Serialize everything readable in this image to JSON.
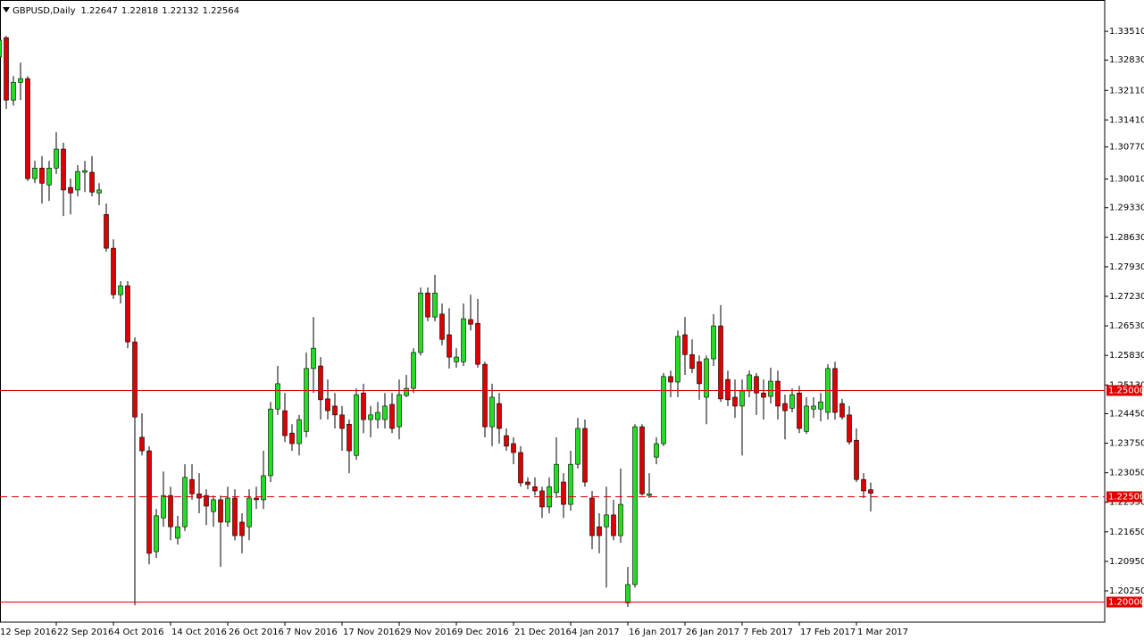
{
  "chart_data": {
    "type": "candlestick",
    "title": "GBPUSD,Daily",
    "categories": [
      "12 Sep 2016",
      null,
      null,
      null,
      null,
      null,
      null,
      null,
      "22 Sep 2016",
      null,
      null,
      null,
      null,
      null,
      null,
      null,
      "4 Oct 2016",
      null,
      null,
      null,
      null,
      null,
      null,
      null,
      "14 Oct 2016",
      null,
      null,
      null,
      null,
      null,
      null,
      null,
      "26 Oct 2016",
      null,
      null,
      null,
      null,
      null,
      null,
      null,
      "7 Nov 2016",
      null,
      null,
      null,
      null,
      null,
      null,
      null,
      "17 Nov 2016",
      null,
      null,
      null,
      null,
      null,
      null,
      null,
      "29 Nov 2016",
      null,
      null,
      null,
      null,
      null,
      null,
      null,
      "9 Dec 2016",
      null,
      null,
      null,
      null,
      null,
      null,
      null,
      "21 Dec 2016",
      null,
      null,
      null,
      null,
      null,
      null,
      null,
      "4 Jan 2017",
      null,
      null,
      null,
      null,
      null,
      null,
      null,
      "16 Jan 2017",
      null,
      null,
      null,
      null,
      null,
      null,
      null,
      "26 Jan 2017",
      null,
      null,
      null,
      null,
      null,
      null,
      null,
      "7 Feb 2017",
      null,
      null,
      null,
      null,
      null,
      null,
      null,
      "17 Feb 2017",
      null,
      null,
      null,
      null,
      null,
      null,
      null,
      "1 Mar 2017",
      null,
      null
    ],
    "open": [
      1.329,
      1.3336,
      1.3188,
      1.323,
      1.3239,
      1.3002,
      1.3027,
      1.2987,
      1.3027,
      1.3072,
      1.2981,
      1.2975,
      1.3017,
      1.3017,
      1.2968,
      1.2917,
      1.2837,
      1.2727,
      1.2748,
      1.2615,
      1.2389,
      1.2357,
      1.2118,
      1.2198,
      1.2251,
      1.215,
      1.2177,
      1.2289,
      1.2255,
      1.2251,
      1.2213,
      1.2241,
      1.2188,
      1.2245,
      1.2188,
      1.2177,
      1.2245,
      1.2241,
      1.2298,
      1.2456,
      1.2452,
      1.2399,
      1.2374,
      1.2403,
      1.2552,
      1.2558,
      1.248,
      1.2463,
      1.2442,
      1.242,
      1.2346,
      1.2494,
      1.2431,
      1.2431,
      1.2431,
      1.2467,
      1.2414,
      1.2488,
      1.2505,
      1.259,
      1.2731,
      1.2674,
      1.2681,
      1.2632,
      1.2568,
      1.2568,
      1.2668,
      1.2659,
      1.2562,
      1.2414,
      1.2469,
      1.2393,
      1.2374,
      1.2353,
      1.2283,
      1.2272,
      1.2262,
      1.2224,
      1.2258,
      1.2283,
      1.223,
      1.2325,
      1.241,
      1.2245,
      1.2177,
      1.2177,
      1.2205,
      1.2156,
      1.1997,
      1.204,
      1.2414,
      1.2251,
      1.2342,
      1.2374,
      1.2533,
      1.252,
      1.2632,
      1.2585,
      1.2568,
      1.2484,
      1.2575,
      1.2653,
      1.2526,
      1.2484,
      1.2463,
      1.2499,
      1.2533,
      1.2494,
      1.2486,
      1.2522,
      1.2469,
      1.2458,
      1.2494,
      1.2403,
      1.2456,
      1.2456,
      1.2448,
      1.2552,
      1.2469,
      1.2442,
      1.2382,
      1.2289,
      1.22647
    ],
    "high": [
      1.334,
      1.334,
      1.3245,
      1.3277,
      1.3245,
      1.3044,
      1.3055,
      1.3044,
      1.3112,
      1.3087,
      1.3002,
      1.3034,
      1.3044,
      1.3055,
      1.2991,
      1.2943,
      1.2858,
      1.2759,
      1.2759,
      1.2626,
      1.2446,
      1.2368,
      1.2219,
      1.2308,
      1.2272,
      1.2203,
      1.2325,
      1.2325,
      1.2304,
      1.2266,
      1.2251,
      1.2251,
      1.2272,
      1.2266,
      1.2209,
      1.2266,
      1.2272,
      1.2357,
      1.2473,
      1.2558,
      1.2494,
      1.242,
      1.2442,
      1.259,
      1.2674,
      1.2579,
      1.2526,
      1.2494,
      1.2463,
      1.2431,
      1.2505,
      1.2516,
      1.2463,
      1.2473,
      1.2494,
      1.2494,
      1.2526,
      1.2537,
      1.26,
      1.2744,
      1.2744,
      1.2774,
      1.2706,
      1.2695,
      1.26,
      1.2706,
      1.2727,
      1.2717,
      1.2568,
      1.2516,
      1.2494,
      1.241,
      1.2389,
      1.2368,
      1.2294,
      1.2294,
      1.2272,
      1.2294,
      1.2389,
      1.2304,
      1.2357,
      1.2435,
      1.2431,
      1.2262,
      1.2209,
      1.2272,
      1.2241,
      1.2315,
      1.2082,
      1.242,
      1.242,
      1.2304,
      1.2389,
      1.2541,
      1.2547,
      1.2642,
      1.2674,
      1.2621,
      1.2583,
      1.2583,
      1.2681,
      1.2702,
      1.2547,
      1.2526,
      1.2526,
      1.2547,
      1.2541,
      1.2526,
      1.2554,
      1.2547,
      1.249,
      1.2505,
      1.2511,
      1.2484,
      1.2484,
      1.2494,
      1.2562,
      1.2568,
      1.248,
      1.2463,
      1.241,
      1.2304,
      1.22818
    ],
    "low": [
      1.3266,
      1.3167,
      1.3175,
      1.3188,
      1.2996,
      1.2991,
      1.2943,
      1.2949,
      1.3013,
      1.2913,
      1.2917,
      1.296,
      1.297,
      1.296,
      1.2939,
      1.2829,
      1.2717,
      1.2706,
      1.26,
      1.1991,
      1.2346,
      1.2088,
      1.2103,
      1.2177,
      1.2145,
      1.2135,
      1.2167,
      1.2241,
      1.2209,
      1.2181,
      1.2177,
      1.2082,
      1.2177,
      1.2145,
      1.2114,
      1.2145,
      1.2219,
      1.2219,
      1.2283,
      1.2442,
      1.2378,
      1.2357,
      1.2346,
      1.2389,
      1.2494,
      1.2431,
      1.2431,
      1.241,
      1.2357,
      1.2304,
      1.2336,
      1.2399,
      1.2389,
      1.241,
      1.241,
      1.2399,
      1.2384,
      1.2484,
      1.2494,
      1.2583,
      1.2664,
      1.2664,
      1.2607,
      1.2552,
      1.2554,
      1.2558,
      1.2642,
      1.2554,
      1.2389,
      1.2368,
      1.2374,
      1.2357,
      1.2325,
      1.2272,
      1.2266,
      1.2251,
      1.2198,
      1.2209,
      1.2245,
      1.2198,
      1.2215,
      1.2315,
      1.2272,
      1.2124,
      1.2114,
      1.2033,
      1.2145,
      1.2139,
      1.1987,
      1.2033,
      1.2251,
      1.2245,
      1.2325,
      1.2368,
      1.2484,
      1.2484,
      1.2537,
      1.2541,
      1.2478,
      1.242,
      1.2558,
      1.2473,
      1.2463,
      1.2435,
      1.2346,
      1.2484,
      1.2442,
      1.2431,
      1.2469,
      1.2431,
      1.2384,
      1.2448,
      1.2399,
      1.2397,
      1.2435,
      1.2427,
      1.2431,
      1.2431,
      1.2431,
      1.2372,
      1.2283,
      1.2245,
      1.22132
    ],
    "close": [
      1.333,
      1.3188,
      1.323,
      1.3239,
      1.3002,
      1.3027,
      1.2991,
      1.3027,
      1.3072,
      1.2975,
      1.2968,
      1.3019,
      1.3021,
      1.297,
      1.2975,
      1.2837,
      1.2727,
      1.2748,
      1.2615,
      1.2437,
      1.2357,
      1.2114,
      1.2203,
      1.2251,
      1.2177,
      1.2177,
      1.2294,
      1.2255,
      1.2245,
      1.2226,
      1.2241,
      1.2188,
      1.2245,
      1.2156,
      1.2156,
      1.2245,
      1.2241,
      1.2298,
      1.2456,
      1.2516,
      1.2393,
      1.2374,
      1.2431,
      1.2552,
      1.26,
      1.2478,
      1.2452,
      1.2442,
      1.241,
      1.2357,
      1.249,
      1.2431,
      1.2442,
      1.2448,
      1.2463,
      1.241,
      1.249,
      1.2505,
      1.259,
      1.2731,
      1.2674,
      1.2731,
      1.2621,
      1.2579,
      1.2579,
      1.267,
      1.2657,
      1.2562,
      1.2414,
      1.2484,
      1.241,
      1.2368,
      1.2353,
      1.2281,
      1.2277,
      1.2262,
      1.2224,
      1.2272,
      1.2325,
      1.223,
      1.2325,
      1.241,
      1.2283,
      1.2156,
      1.2156,
      1.2205,
      1.2156,
      1.223,
      1.204,
      1.2414,
      1.2255,
      1.2255,
      1.2374,
      1.2533,
      1.252,
      1.2628,
      1.2585,
      1.2552,
      1.2516,
      1.2575,
      1.2653,
      1.248,
      1.2478,
      1.2463,
      1.2499,
      1.2537,
      1.2494,
      1.2484,
      1.2522,
      1.2463,
      1.2452,
      1.249,
      1.241,
      1.2463,
      1.2463,
      1.2473,
      1.2552,
      1.2448,
      1.2437,
      1.2378,
      1.2289,
      1.2262,
      1.22564
    ],
    "up_color": "#22dd22",
    "down_color": "#dd0000",
    "ylim": [
      1.1951,
      1.3421
    ],
    "yticks": [
      {
        "value": 1.3351,
        "label": "1.33510"
      },
      {
        "value": 1.3283,
        "label": "1.32830"
      },
      {
        "value": 1.3211,
        "label": "1.32110"
      },
      {
        "value": 1.3141,
        "label": "1.31410"
      },
      {
        "value": 1.3077,
        "label": "1.30770"
      },
      {
        "value": 1.3001,
        "label": "1.30010"
      },
      {
        "value": 1.2933,
        "label": "1.29330"
      },
      {
        "value": 1.2863,
        "label": "1.28630"
      },
      {
        "value": 1.2793,
        "label": "1.27930"
      },
      {
        "value": 1.2723,
        "label": "1.27230"
      },
      {
        "value": 1.2653,
        "label": "1.26530"
      },
      {
        "value": 1.2583,
        "label": "1.25830"
      },
      {
        "value": 1.2513,
        "label": "1.25130"
      },
      {
        "value": 1.2445,
        "label": "1.24450"
      },
      {
        "value": 1.2375,
        "label": "1.23750"
      },
      {
        "value": 1.2305,
        "label": "1.23050"
      },
      {
        "value": 1.2235,
        "label": "1.22350"
      },
      {
        "value": 1.2165,
        "label": "1.21650"
      },
      {
        "value": 1.2095,
        "label": "1.20950"
      },
      {
        "value": 1.2025,
        "label": "1.20250"
      }
    ],
    "levels": [
      {
        "value": 1.25,
        "label": "1.25000",
        "style": "solid"
      },
      {
        "value": 1.225,
        "label": "1.22500",
        "style": "dashed"
      },
      {
        "value": 1.2,
        "label": "1.20000",
        "style": "solid"
      }
    ],
    "level_color": "#e00000",
    "grid": false
  }
}
